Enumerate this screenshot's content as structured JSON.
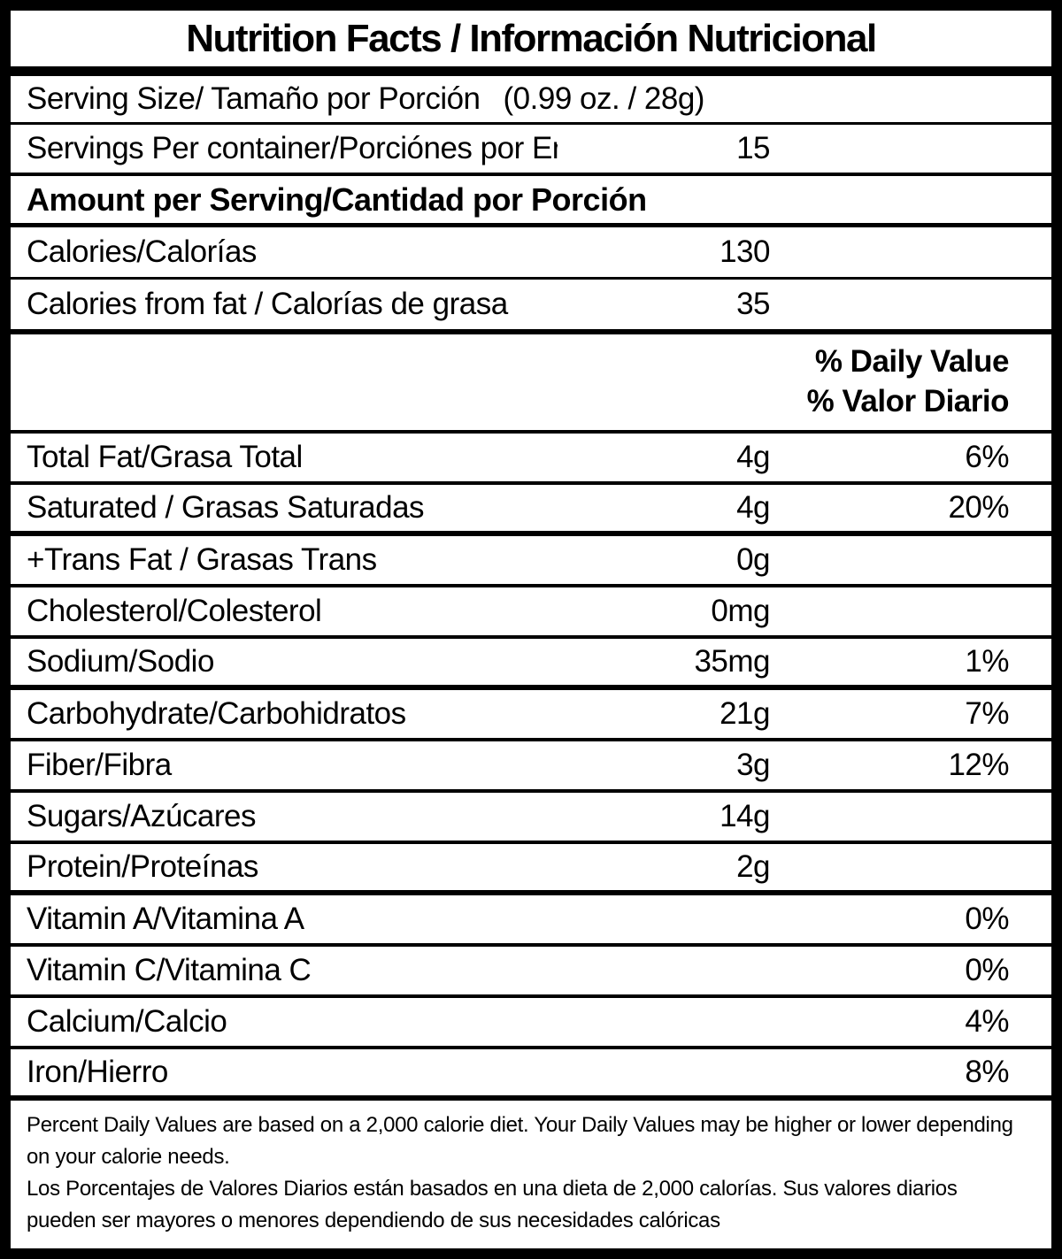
{
  "colors": {
    "ink": "#000000",
    "background": "#ffffff"
  },
  "title": "Nutrition Facts / Información Nutricional",
  "serving": {
    "size_label": "Serving Size/ Tamaño por Porción",
    "size_value": "(0.99 oz. / 28g)",
    "per_container_label": "Servings Per container/Porciónes por Envase:",
    "per_container_value": "15"
  },
  "section_heading": "Amount per Serving/Cantidad por Porción",
  "calories": {
    "label": "Calories/Calorías",
    "value": "130"
  },
  "calories_from_fat": {
    "label": "Calories from fat / Calorías de grasa",
    "value": "35"
  },
  "daily_value_header": {
    "line1": "% Daily Value",
    "line2": "% Valor Diario"
  },
  "nutrients": [
    {
      "label": "Total Fat/Grasa Total",
      "amount": "4g",
      "daily_value": "6%"
    },
    {
      "label": "Saturated / Grasas Saturadas",
      "amount": "4g",
      "daily_value": "20%"
    },
    {
      "label": "+Trans Fat / Grasas Trans",
      "amount": "0g",
      "daily_value": ""
    },
    {
      "label": "Cholesterol/Colesterol",
      "amount": "0mg",
      "daily_value": ""
    },
    {
      "label": "Sodium/Sodio",
      "amount": "35mg",
      "daily_value": "1%"
    },
    {
      "label": "Carbohydrate/Carbohidratos",
      "amount": "21g",
      "daily_value": "7%"
    },
    {
      "label": "Fiber/Fibra",
      "amount": "3g",
      "daily_value": "12%"
    },
    {
      "label": "Sugars/Azúcares",
      "amount": "14g",
      "daily_value": ""
    },
    {
      "label": "Protein/Proteínas",
      "amount": "2g",
      "daily_value": ""
    },
    {
      "label": "Vitamin A/Vitamina A",
      "amount": "",
      "daily_value": "0%"
    },
    {
      "label": "Vitamin C/Vitamina C",
      "amount": "",
      "daily_value": "0%"
    },
    {
      "label": "Calcium/Calcio",
      "amount": "",
      "daily_value": "4%"
    },
    {
      "label": "Iron/Hierro",
      "amount": "",
      "daily_value": "8%"
    }
  ],
  "footnotes": {
    "en": "Percent Daily Values are based on a 2,000 calorie diet. Your Daily Values may be higher or lower depending on your calorie needs.",
    "es": "Los Porcentajes de Valores Diarios están basados en una dieta de 2,000 calorías. Sus valores diarios pueden ser mayores o menores dependiendo de sus necesidades calóricas"
  }
}
